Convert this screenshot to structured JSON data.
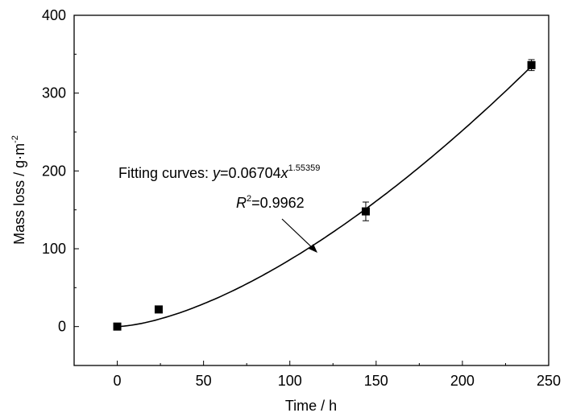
{
  "chart_data": {
    "type": "scatter",
    "xlabel": "Time / h",
    "ylabel": "Mass loss / g·m",
    "ylabel_sup": "-2",
    "xlim": [
      -25,
      250
    ],
    "ylim": [
      -50,
      400
    ],
    "xticks": [
      0,
      50,
      100,
      150,
      200,
      250
    ],
    "yticks": [
      0,
      100,
      200,
      300,
      400
    ],
    "grid": false,
    "points": [
      {
        "x": 0,
        "y": 0,
        "err": 0
      },
      {
        "x": 24,
        "y": 22,
        "err": 0
      },
      {
        "x": 144,
        "y": 148,
        "err": 12
      },
      {
        "x": 240,
        "y": 336,
        "err": 7
      }
    ],
    "fit": {
      "a": 0.06704,
      "b": 1.55359,
      "r2": 0.9962
    },
    "annotation": {
      "prefix": "Fitting curves: ",
      "y_var": "y",
      "equation": "=0.06704",
      "x_var": "x",
      "exponent": "1.55359",
      "r_var": "R",
      "r_sup": "2",
      "r_value": "=0.9962"
    },
    "color": "#000000"
  }
}
